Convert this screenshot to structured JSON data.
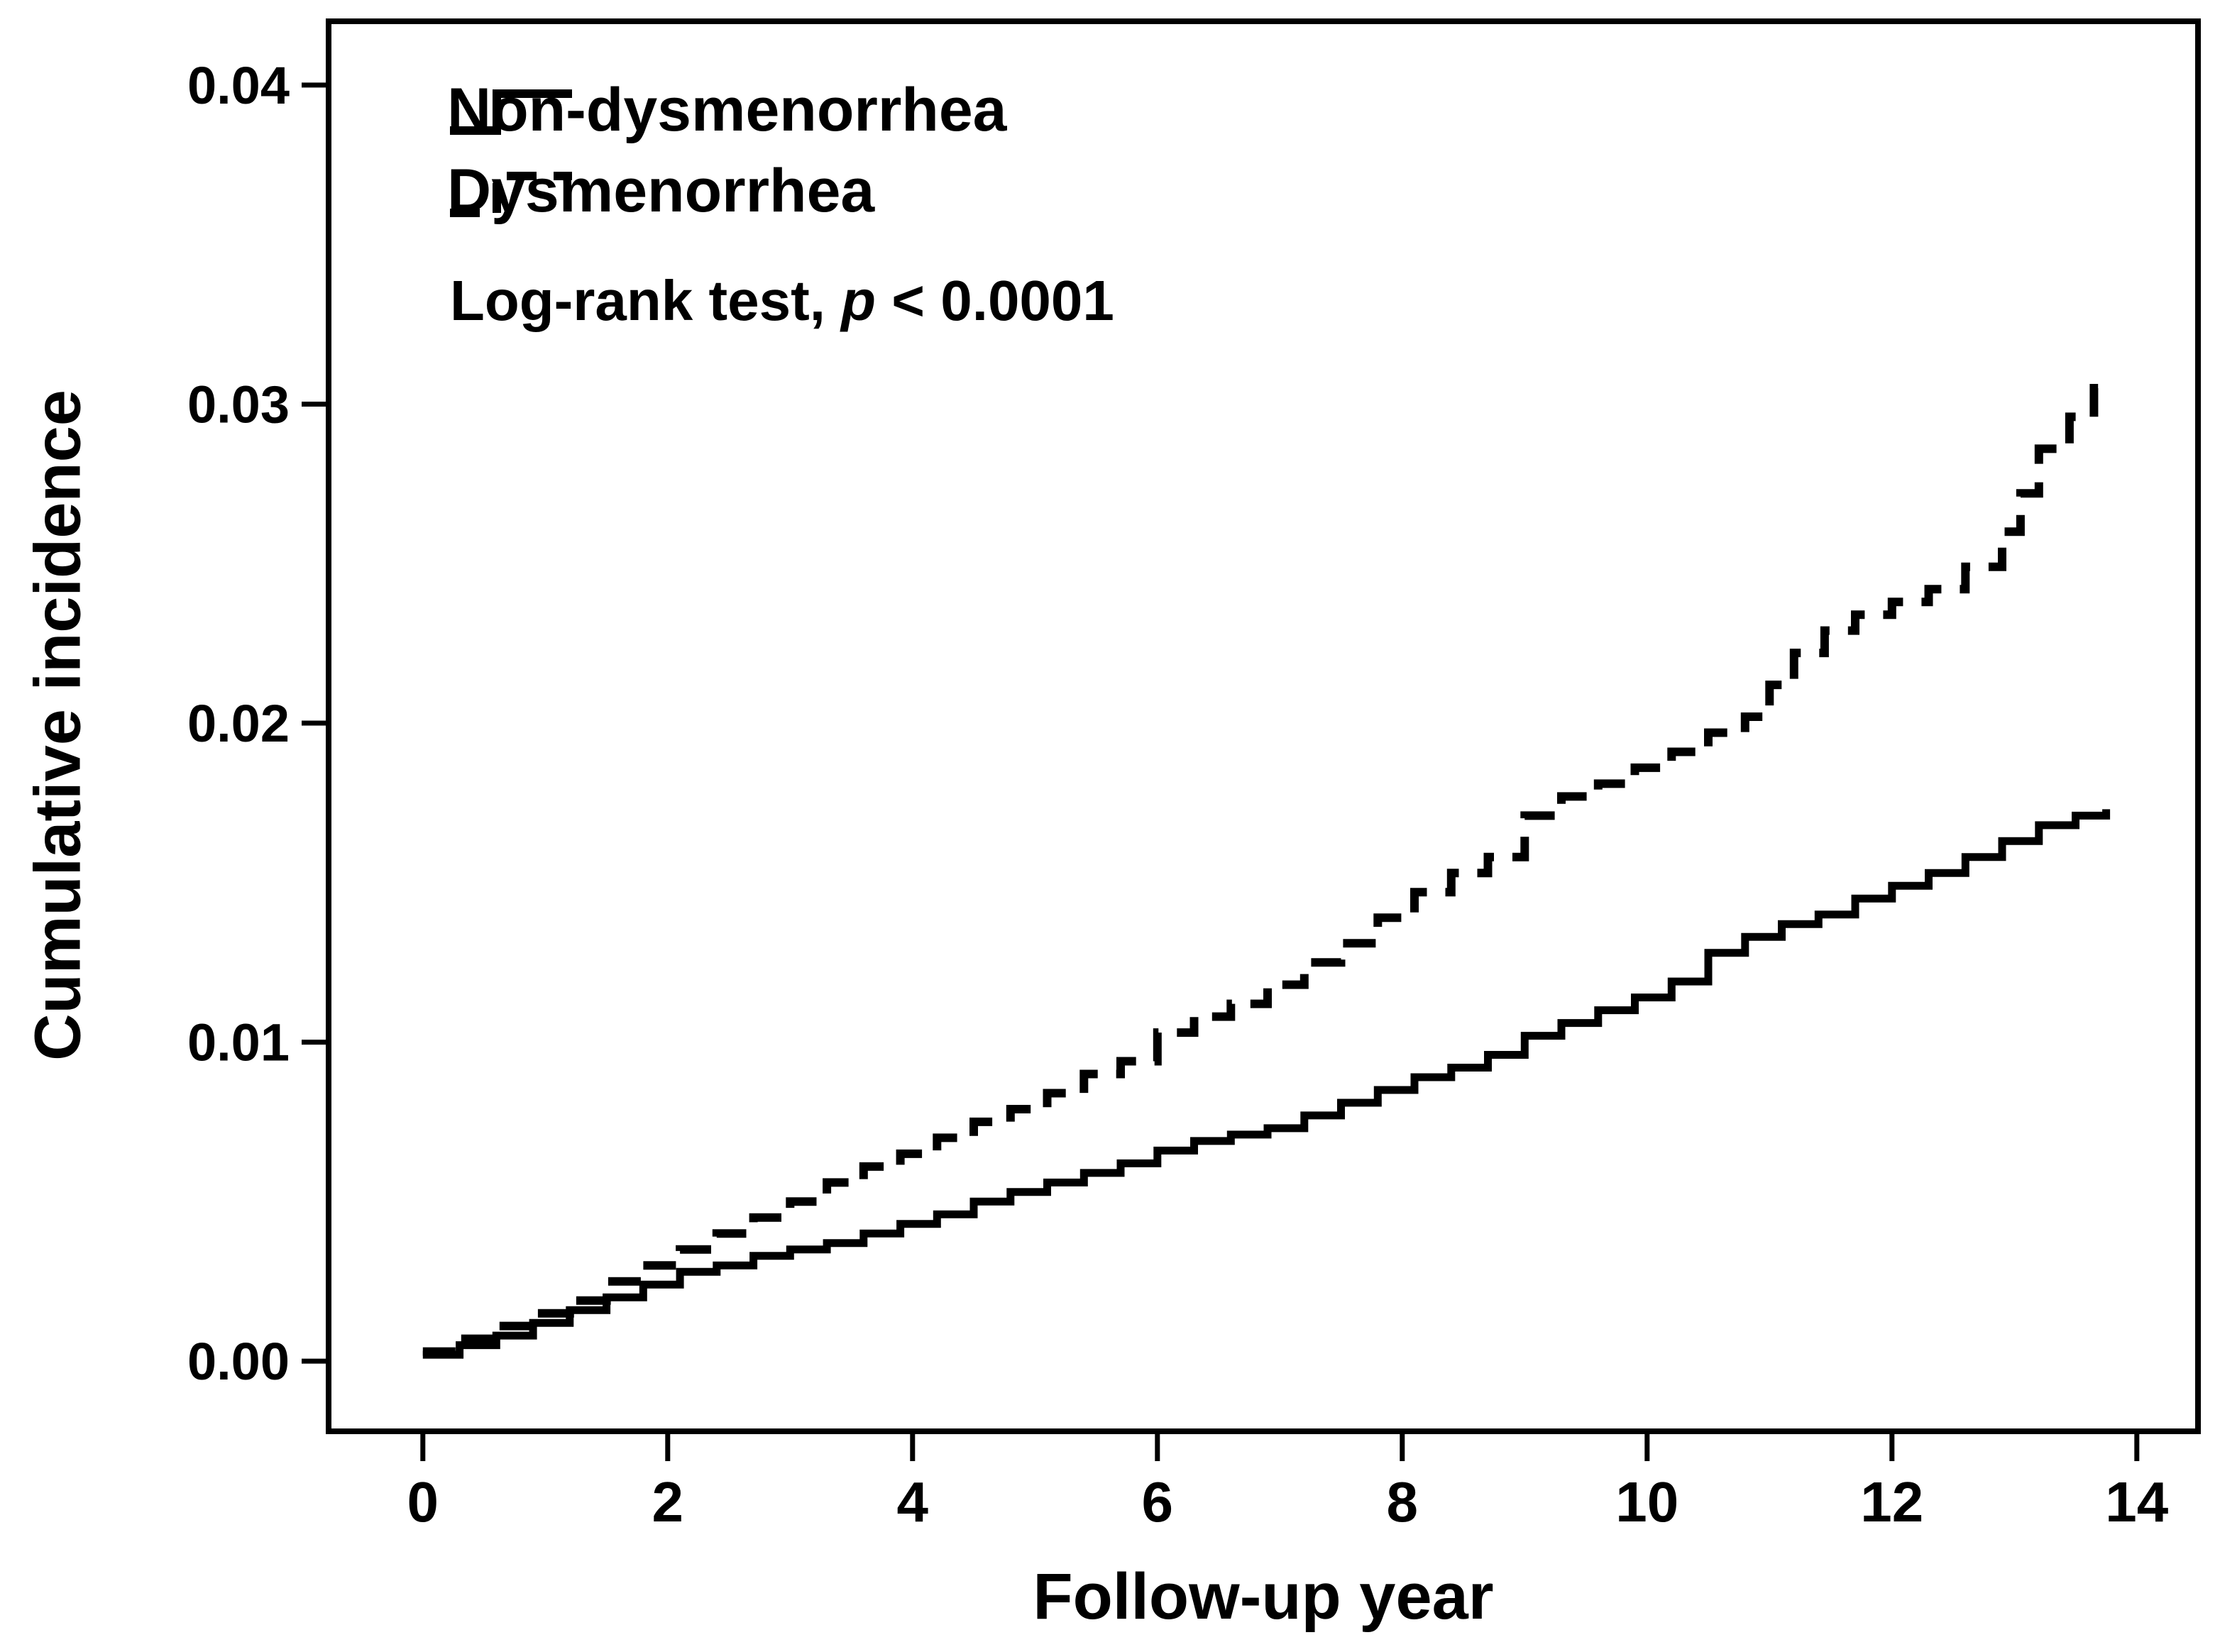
{
  "figure": {
    "background": "#ffffff",
    "ink": "#000000"
  },
  "chart_data": {
    "type": "line",
    "subtype": "step-after",
    "title": "",
    "xlabel": "Follow-up year",
    "ylabel": "Cumulative incidence",
    "xlim": [
      -0.77,
      14.5
    ],
    "ylim": [
      -0.0022,
      0.042
    ],
    "grid": false,
    "legend_position": "top-left-inside",
    "x_ticks": [
      0,
      2,
      4,
      6,
      8,
      10,
      12,
      14
    ],
    "x_tick_labels": [
      "0",
      "2",
      "4",
      "6",
      "8",
      "10",
      "12",
      "14"
    ],
    "y_ticks": [
      0,
      0.01,
      0.02,
      0.03,
      0.04
    ],
    "y_tick_labels": [
      "0.00",
      "0.01",
      "0.02",
      "0.03",
      "0.04"
    ],
    "annotation": {
      "prefix": "Log-rank test, ",
      "p_symbol": "p",
      "suffix": " < 0.0001"
    },
    "series": [
      {
        "name": "Non-dysmenorrhea",
        "style": "solid",
        "points": [
          [
            0,
            0.0002
          ],
          [
            0.3,
            0.0005
          ],
          [
            0.6,
            0.0008
          ],
          [
            0.9,
            0.0012
          ],
          [
            1.2,
            0.0016
          ],
          [
            1.5,
            0.002
          ],
          [
            1.8,
            0.0024
          ],
          [
            2.1,
            0.0028
          ],
          [
            2.4,
            0.003
          ],
          [
            2.7,
            0.0033
          ],
          [
            3.0,
            0.0035
          ],
          [
            3.3,
            0.0037
          ],
          [
            3.6,
            0.004
          ],
          [
            3.9,
            0.0043
          ],
          [
            4.2,
            0.0046
          ],
          [
            4.5,
            0.005
          ],
          [
            4.8,
            0.0053
          ],
          [
            5.1,
            0.0056
          ],
          [
            5.4,
            0.0059
          ],
          [
            5.7,
            0.0062
          ],
          [
            6.0,
            0.0066
          ],
          [
            6.3,
            0.0069
          ],
          [
            6.6,
            0.0071
          ],
          [
            6.9,
            0.0073
          ],
          [
            7.2,
            0.0077
          ],
          [
            7.5,
            0.0081
          ],
          [
            7.8,
            0.0085
          ],
          [
            8.1,
            0.0089
          ],
          [
            8.4,
            0.0092
          ],
          [
            8.7,
            0.0096
          ],
          [
            9.0,
            0.0102
          ],
          [
            9.3,
            0.0106
          ],
          [
            9.6,
            0.011
          ],
          [
            9.9,
            0.0114
          ],
          [
            10.2,
            0.0119
          ],
          [
            10.5,
            0.0128
          ],
          [
            10.8,
            0.0133
          ],
          [
            11.1,
            0.0137
          ],
          [
            11.4,
            0.014
          ],
          [
            11.7,
            0.0145
          ],
          [
            12.0,
            0.0149
          ],
          [
            12.3,
            0.0153
          ],
          [
            12.6,
            0.0158
          ],
          [
            12.9,
            0.0163
          ],
          [
            13.2,
            0.0168
          ],
          [
            13.5,
            0.0171
          ],
          [
            13.75,
            0.0173
          ]
        ]
      },
      {
        "name": "Dysmenorrhea",
        "style": "dashed",
        "points": [
          [
            0,
            0.0003
          ],
          [
            0.3,
            0.0007
          ],
          [
            0.6,
            0.0011
          ],
          [
            0.9,
            0.0015
          ],
          [
            1.2,
            0.0019
          ],
          [
            1.5,
            0.0025
          ],
          [
            1.8,
            0.003
          ],
          [
            2.1,
            0.0035
          ],
          [
            2.4,
            0.004
          ],
          [
            2.7,
            0.0045
          ],
          [
            3.0,
            0.005
          ],
          [
            3.3,
            0.0056
          ],
          [
            3.6,
            0.0061
          ],
          [
            3.9,
            0.0065
          ],
          [
            4.2,
            0.007
          ],
          [
            4.5,
            0.0075
          ],
          [
            4.8,
            0.0079
          ],
          [
            5.1,
            0.0084
          ],
          [
            5.4,
            0.009
          ],
          [
            5.7,
            0.0094
          ],
          [
            6.0,
            0.0103
          ],
          [
            6.3,
            0.0108
          ],
          [
            6.6,
            0.0112
          ],
          [
            6.9,
            0.0118
          ],
          [
            7.2,
            0.0125
          ],
          [
            7.5,
            0.0131
          ],
          [
            7.8,
            0.0139
          ],
          [
            8.1,
            0.0147
          ],
          [
            8.4,
            0.0153
          ],
          [
            8.7,
            0.0158
          ],
          [
            9.0,
            0.0171
          ],
          [
            9.3,
            0.0177
          ],
          [
            9.6,
            0.0181
          ],
          [
            9.9,
            0.0186
          ],
          [
            10.2,
            0.0191
          ],
          [
            10.5,
            0.0197
          ],
          [
            10.8,
            0.0202
          ],
          [
            11.0,
            0.0212
          ],
          [
            11.2,
            0.0222
          ],
          [
            11.45,
            0.0229
          ],
          [
            11.7,
            0.0234
          ],
          [
            12.0,
            0.0238
          ],
          [
            12.3,
            0.0242
          ],
          [
            12.6,
            0.0249
          ],
          [
            12.9,
            0.026
          ],
          [
            13.05,
            0.0272
          ],
          [
            13.2,
            0.0286
          ],
          [
            13.45,
            0.0296
          ],
          [
            13.65,
            0.0305
          ],
          [
            13.75,
            0.0308
          ]
        ]
      }
    ]
  }
}
